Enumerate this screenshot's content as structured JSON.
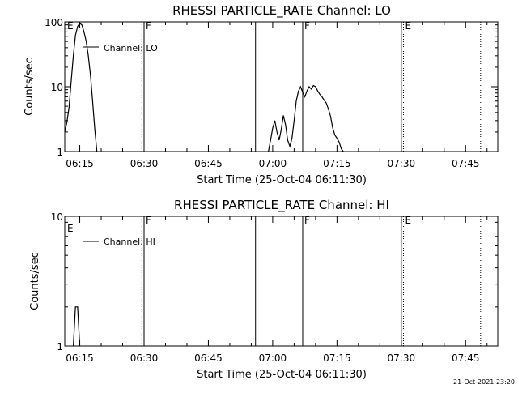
{
  "chart_data": [
    {
      "type": "line",
      "title": "RHESSI PARTICLE_RATE Channel: LO",
      "xlabel": "Start Time (25-Oct-04 06:11:30)",
      "ylabel": "Counts/sec",
      "yscale": "log",
      "ylim": [
        1,
        100
      ],
      "xlim": [
        "06:11:30",
        "07:52:30"
      ],
      "yticks": [
        {
          "value": 1,
          "label": "1"
        },
        {
          "value": 10,
          "label": "10"
        },
        {
          "value": 100,
          "label": "100"
        }
      ],
      "xticks": [
        {
          "time": "06:15",
          "label": "06:15"
        },
        {
          "time": "06:30",
          "label": "06:30"
        },
        {
          "time": "06:45",
          "label": "06:45"
        },
        {
          "time": "07:00",
          "label": "07:00"
        },
        {
          "time": "07:15",
          "label": "07:15"
        },
        {
          "time": "07:30",
          "label": "07:30"
        },
        {
          "time": "07:45",
          "label": "07:45"
        }
      ],
      "legend": {
        "label": "Channel: LO",
        "position": "top-left"
      },
      "series": [
        {
          "name": "Channel: LO",
          "segments": [
            [
              [
                "06:11:30",
                2.0
              ],
              [
                "06:12:00",
                2.8
              ],
              [
                "06:12:30",
                4.8
              ],
              [
                "06:13:00",
                12
              ],
              [
                "06:13:30",
                30
              ],
              [
                "06:14:00",
                62
              ],
              [
                "06:14:30",
                85
              ],
              [
                "06:15:00",
                95
              ],
              [
                "06:15:30",
                90
              ],
              [
                "06:16:00",
                70
              ],
              [
                "06:16:30",
                50
              ],
              [
                "06:17:00",
                30
              ],
              [
                "06:17:30",
                15
              ],
              [
                "06:18:00",
                6
              ],
              [
                "06:18:30",
                2.2
              ],
              [
                "06:19:00",
                1.0
              ]
            ],
            [
              [
                "06:59:00",
                1.0
              ],
              [
                "06:59:30",
                1.5
              ],
              [
                "07:00:00",
                2.3
              ],
              [
                "07:00:30",
                3.0
              ],
              [
                "07:01:00",
                2.0
              ],
              [
                "07:01:30",
                1.5
              ],
              [
                "07:02:00",
                2.2
              ],
              [
                "07:02:30",
                3.6
              ],
              [
                "07:03:00",
                2.6
              ],
              [
                "07:03:30",
                1.5
              ],
              [
                "07:04:00",
                1.2
              ],
              [
                "07:04:30",
                1.6
              ],
              [
                "07:05:00",
                3.0
              ],
              [
                "07:05:30",
                6
              ],
              [
                "07:06:00",
                8.5
              ],
              [
                "07:06:30",
                10
              ],
              [
                "07:07:00",
                8.2
              ],
              [
                "07:07:30",
                7
              ],
              [
                "07:08:00",
                8.6
              ],
              [
                "07:08:30",
                10
              ],
              [
                "07:09:00",
                9.2
              ],
              [
                "07:09:30",
                10.4
              ],
              [
                "07:10:00",
                10
              ],
              [
                "07:10:30",
                8.6
              ],
              [
                "07:11:00",
                7.6
              ],
              [
                "07:11:30",
                7
              ],
              [
                "07:12:00",
                6.2
              ],
              [
                "07:12:30",
                5.6
              ],
              [
                "07:13:00",
                4.5
              ],
              [
                "07:13:30",
                3.5
              ],
              [
                "07:14:00",
                2.3
              ],
              [
                "07:14:30",
                1.8
              ],
              [
                "07:15:00",
                1.6
              ],
              [
                "07:15:30",
                1.4
              ],
              [
                "07:16:00",
                1.1
              ],
              [
                "07:16:30",
                1.0
              ]
            ]
          ]
        }
      ],
      "vlines": [
        {
          "time": "06:29:30",
          "style": "dotted",
          "label": ""
        },
        {
          "time": "06:30:00",
          "style": "solid",
          "label": "F"
        },
        {
          "time": "06:56:00",
          "style": "solid",
          "label": ""
        },
        {
          "time": "07:07:00",
          "style": "solid",
          "label": "F"
        },
        {
          "time": "07:30:00",
          "style": "solid",
          "label": ""
        },
        {
          "time": "07:30:30",
          "style": "dotted",
          "label": "E"
        },
        {
          "time": "07:48:30",
          "style": "dotted",
          "label": ""
        }
      ],
      "start_mark": {
        "label": "E"
      }
    },
    {
      "type": "line",
      "title": "RHESSI PARTICLE_RATE Channel: HI",
      "xlabel": "Start Time (25-Oct-04 06:11:30)",
      "ylabel": "Counts/sec",
      "yscale": "log",
      "ylim": [
        1,
        10
      ],
      "xlim": [
        "06:11:30",
        "07:52:30"
      ],
      "yticks": [
        {
          "value": 1,
          "label": "1"
        },
        {
          "value": 10,
          "label": "10"
        }
      ],
      "xticks": [
        {
          "time": "06:15",
          "label": "06:15"
        },
        {
          "time": "06:30",
          "label": "06:30"
        },
        {
          "time": "06:45",
          "label": "06:45"
        },
        {
          "time": "07:00",
          "label": "07:00"
        },
        {
          "time": "07:15",
          "label": "07:15"
        },
        {
          "time": "07:30",
          "label": "07:30"
        },
        {
          "time": "07:45",
          "label": "07:45"
        }
      ],
      "legend": {
        "label": "Channel: HI",
        "position": "top-left"
      },
      "series": [
        {
          "name": "Channel: HI",
          "segments": [
            [
              [
                "06:13:30",
                1.0
              ],
              [
                "06:14:00",
                2.0
              ],
              [
                "06:14:30",
                2.0
              ],
              [
                "06:15:00",
                1.0
              ]
            ]
          ]
        }
      ],
      "vlines": [
        {
          "time": "06:29:30",
          "style": "dotted",
          "label": ""
        },
        {
          "time": "06:30:00",
          "style": "solid",
          "label": "F"
        },
        {
          "time": "06:56:00",
          "style": "solid",
          "label": ""
        },
        {
          "time": "07:07:00",
          "style": "solid",
          "label": "F"
        },
        {
          "time": "07:30:00",
          "style": "solid",
          "label": ""
        },
        {
          "time": "07:30:30",
          "style": "dotted",
          "label": "E"
        },
        {
          "time": "07:48:30",
          "style": "dotted",
          "label": ""
        }
      ],
      "start_mark": {
        "label": "E"
      }
    }
  ],
  "timestamp": "21-Oct-2021 23:20"
}
